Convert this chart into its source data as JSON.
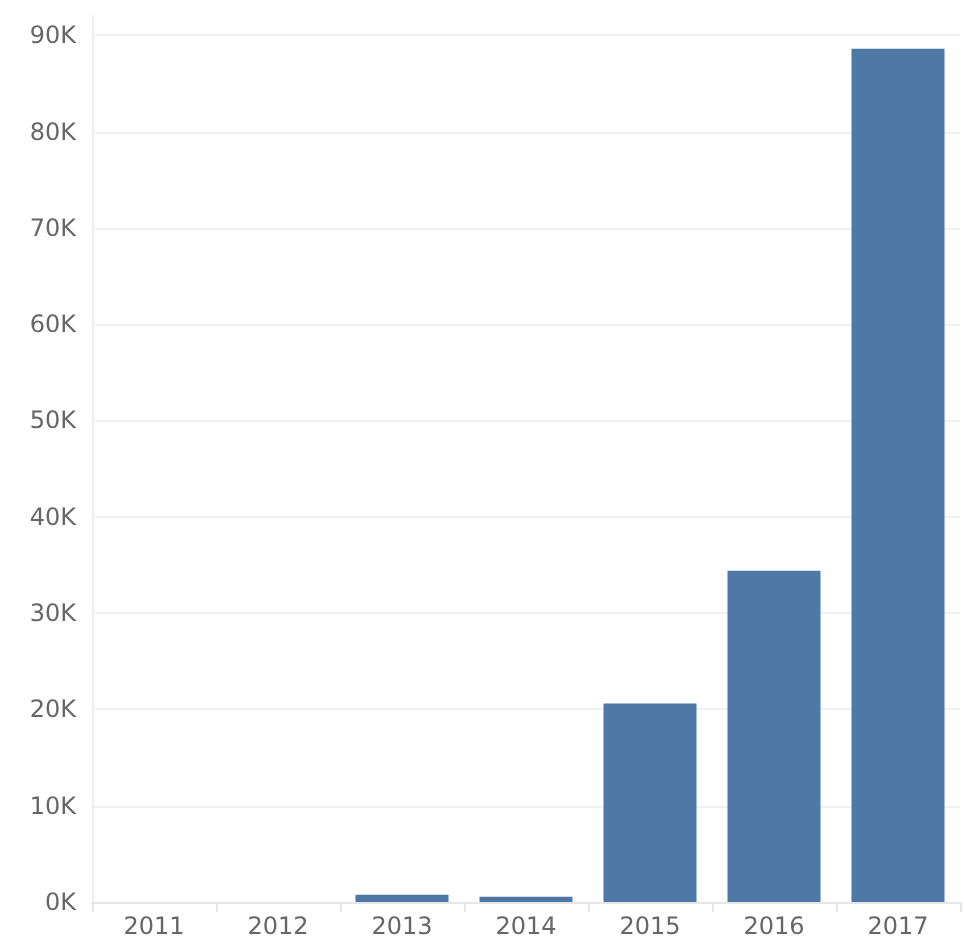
{
  "chart_data": {
    "type": "bar",
    "categories": [
      "2011",
      "2012",
      "2013",
      "2014",
      "2015",
      "2016",
      "2017"
    ],
    "values": [
      0,
      0,
      750,
      550,
      20600,
      34400,
      88600
    ],
    "color": "#4e79a7",
    "ylim": [
      0,
      92000
    ],
    "yticks": [
      {
        "value": 0,
        "label": "0K"
      },
      {
        "value": 10000,
        "label": "10K"
      },
      {
        "value": 20000,
        "label": "20K"
      },
      {
        "value": 30000,
        "label": "30K"
      },
      {
        "value": 40000,
        "label": "40K"
      },
      {
        "value": 50000,
        "label": "50K"
      },
      {
        "value": 60000,
        "label": "60K"
      },
      {
        "value": 70000,
        "label": "70K"
      },
      {
        "value": 80000,
        "label": "80K"
      },
      {
        "value": 90000,
        "label": "90K"
      }
    ],
    "grid": "y"
  }
}
